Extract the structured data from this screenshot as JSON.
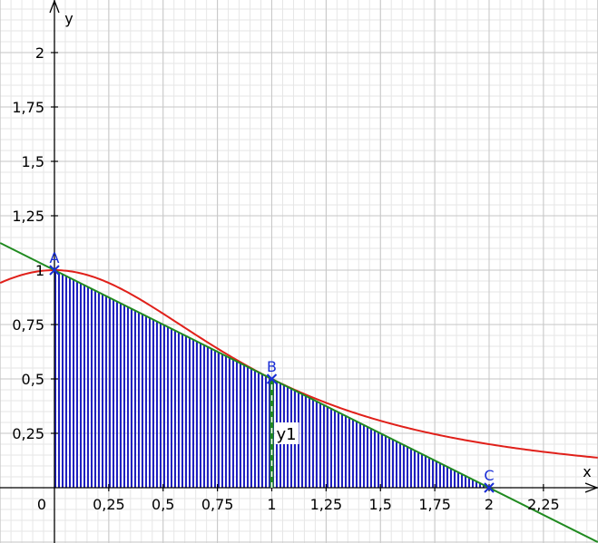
{
  "chart_data": {
    "type": "line",
    "xlabel": "x",
    "ylabel": "y",
    "origin_label": "0",
    "xlim": [
      -0.25,
      2.5
    ],
    "ylim": [
      -0.25,
      2.25
    ],
    "grid": true,
    "x_ticks": [
      {
        "value": 0.25,
        "label": "0,25"
      },
      {
        "value": 0.5,
        "label": "0,5"
      },
      {
        "value": 0.75,
        "label": "0,75"
      },
      {
        "value": 1,
        "label": "1"
      },
      {
        "value": 1.25,
        "label": "1,25"
      },
      {
        "value": 1.5,
        "label": "1,5"
      },
      {
        "value": 1.75,
        "label": "1,75"
      },
      {
        "value": 2,
        "label": "2"
      },
      {
        "value": 2.25,
        "label": "2,25"
      }
    ],
    "y_ticks": [
      {
        "value": 0.25,
        "label": "0,25"
      },
      {
        "value": 0.5,
        "label": "0,5"
      },
      {
        "value": 0.75,
        "label": "0,75"
      },
      {
        "value": 1,
        "label": "1"
      },
      {
        "value": 1.25,
        "label": "1,25"
      },
      {
        "value": 1.5,
        "label": "1,5"
      },
      {
        "value": 1.75,
        "label": "1,75"
      },
      {
        "value": 2,
        "label": "2"
      }
    ],
    "series": [
      {
        "color": "#e0201a",
        "x": [
          -0.25,
          0,
          0.25,
          0.5,
          0.75,
          1,
          1.25,
          1.5,
          1.75,
          2,
          2.25,
          2.5
        ],
        "y": [
          0.941,
          1.0,
          0.941,
          0.8,
          0.64,
          0.5,
          0.39,
          0.308,
          0.246,
          0.2,
          0.165,
          0.138
        ]
      },
      {
        "color": "#1f8a1f",
        "x": [
          -0.25,
          2.5
        ],
        "y": [
          1.125,
          -0.25
        ]
      }
    ],
    "shaded_region": {
      "fill_color": "#2020c0",
      "vertices": [
        [
          0,
          0
        ],
        [
          0,
          1
        ],
        [
          2,
          0
        ]
      ]
    },
    "points": [
      {
        "label": "A",
        "x": 0,
        "y": 1
      },
      {
        "label": "B",
        "x": 1,
        "y": 0.5
      },
      {
        "label": "C",
        "x": 2,
        "y": 0
      }
    ],
    "points_color": "#1a2ed6",
    "annotations": [
      {
        "label": "y1",
        "x": 1,
        "y_from": 0,
        "y_to": 0.5
      }
    ]
  }
}
